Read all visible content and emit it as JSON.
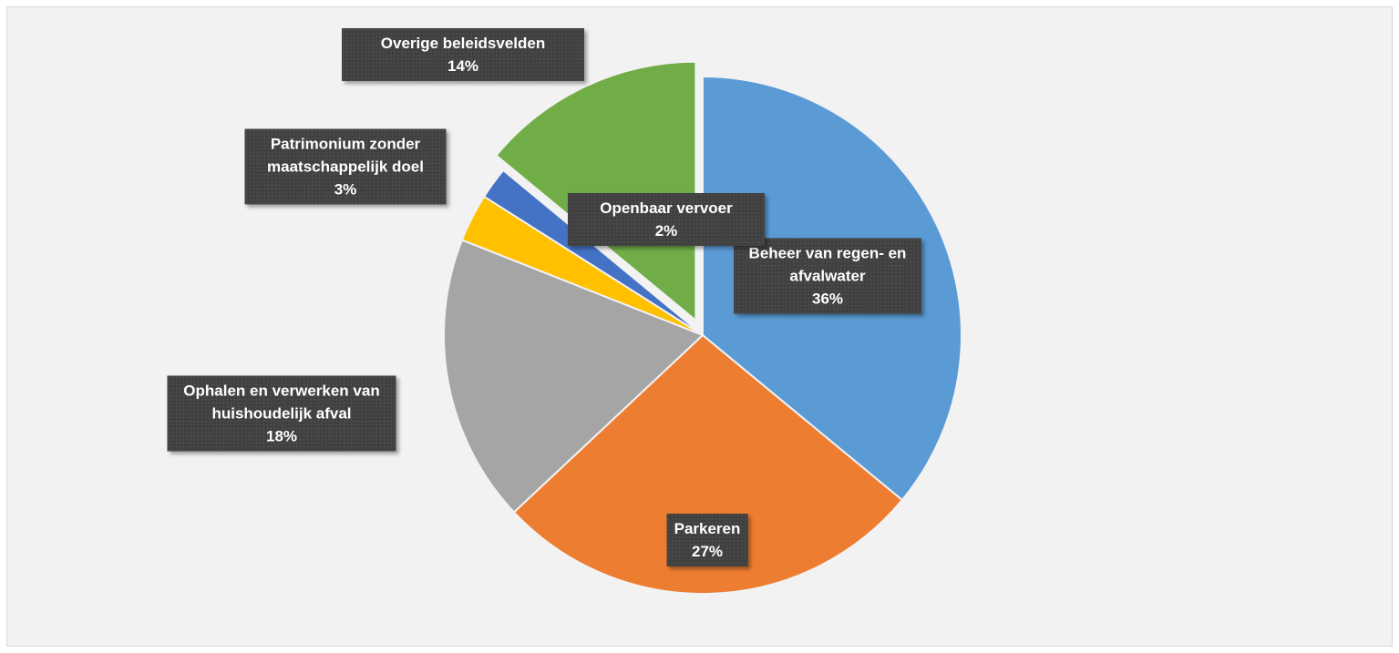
{
  "chart_data": {
    "type": "pie",
    "categories": [
      "Beheer van regen- en afvalwater",
      "Parkeren",
      "Ophalen en verwerken van huishoudelijk afval",
      "Patrimonium zonder maatschappelijk doel",
      "Openbaar vervoer",
      "Overige beleidsvelden"
    ],
    "values": [
      36,
      27,
      18,
      3,
      2,
      14
    ],
    "value_labels": [
      "36%",
      "27%",
      "18%",
      "3%",
      "2%",
      "14%"
    ],
    "colors": [
      "#5b9bd5",
      "#ed7d31",
      "#a5a5a5",
      "#ffc000",
      "#4472c4",
      "#70ad47"
    ],
    "exploded": [
      false,
      false,
      false,
      false,
      false,
      true
    ]
  }
}
